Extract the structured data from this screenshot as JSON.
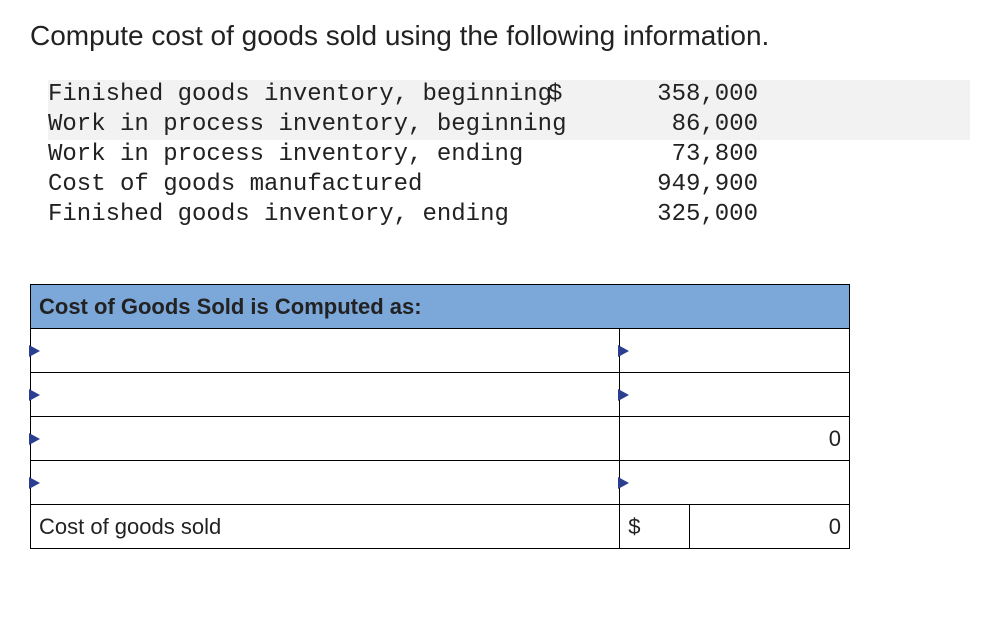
{
  "prompt": "Compute cost of goods sold using the following information.",
  "info": {
    "rows": [
      {
        "label": "Finished goods inventory, beginning",
        "dollar": "$",
        "value": "358,000",
        "shaded": true
      },
      {
        "label": "Work in process inventory, beginning",
        "dollar": "",
        "value": "86,000",
        "shaded": true
      },
      {
        "label": "Work in process inventory, ending",
        "dollar": "",
        "value": "73,800",
        "shaded": false
      },
      {
        "label": "Cost of goods manufactured",
        "dollar": "",
        "value": "949,900",
        "shaded": false
      },
      {
        "label": "Finished goods inventory, ending",
        "dollar": "",
        "value": "325,000",
        "shaded": false
      }
    ]
  },
  "calc": {
    "header": "Cost of Goods Sold is Computed as:",
    "rows": [
      {
        "desc": "",
        "sym": "",
        "value": "",
        "desc_dd": true,
        "amt_dd": true,
        "show_value": false
      },
      {
        "desc": "",
        "sym": "",
        "value": "",
        "desc_dd": true,
        "amt_dd": true,
        "show_value": false
      },
      {
        "desc": "",
        "sym": "",
        "value": "0",
        "desc_dd": true,
        "amt_dd": false,
        "show_value": true
      },
      {
        "desc": "",
        "sym": "",
        "value": "",
        "desc_dd": true,
        "amt_dd": true,
        "show_value": false
      }
    ],
    "final": {
      "label": "Cost of goods sold",
      "sym": "$",
      "value": "0"
    }
  },
  "colors": {
    "header_bg": "#7ba7d9",
    "tab_color": "#2c3e8f",
    "shade_bg": "#f2f2f2",
    "border": "#000000",
    "text": "#222222"
  }
}
